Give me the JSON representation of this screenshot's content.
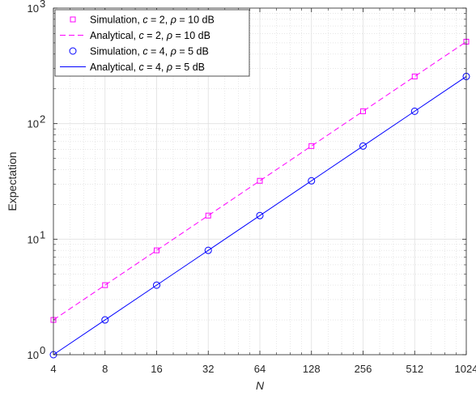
{
  "chart_data": {
    "type": "line",
    "xlabel": "N",
    "ylabel": "Expectation",
    "xscale": "log2",
    "yscale": "log10",
    "xlim": [
      4,
      1024
    ],
    "ylim": [
      1,
      1000
    ],
    "x_ticks": [
      4,
      8,
      16,
      32,
      64,
      128,
      256,
      512,
      1024
    ],
    "x_tick_labels": [
      "4",
      "8",
      "16",
      "32",
      "64",
      "128",
      "256",
      "512",
      "1024"
    ],
    "y_ticks": [
      1,
      10,
      100,
      1000
    ],
    "y_tick_labels": [
      {
        "base": "10",
        "exp": "0"
      },
      {
        "base": "10",
        "exp": "1"
      },
      {
        "base": "10",
        "exp": "2"
      },
      {
        "base": "10",
        "exp": "3"
      }
    ],
    "grid": true,
    "legend_position": "top-left",
    "series": [
      {
        "name": "Simulation, c = 2, ρ = 10 dB",
        "legend": {
          "prefix": "Simulation, ",
          "var1": "c",
          "mid": " = 2, ",
          "var2": "ρ",
          "suffix": " = 10 dB"
        },
        "style": "markers",
        "marker": "square",
        "color": "#ff00ff",
        "x": [
          4,
          8,
          16,
          32,
          64,
          128,
          256,
          512,
          1024
        ],
        "y": [
          2,
          4,
          8,
          16,
          32,
          64,
          128,
          256,
          512
        ]
      },
      {
        "name": "Analytical, c = 2, ρ = 10 dB",
        "legend": {
          "prefix": "Analytical, ",
          "var1": "c",
          "mid": " = 2, ",
          "var2": "ρ",
          "suffix": " = 10 dB"
        },
        "style": "dashed",
        "color": "#ff00ff",
        "x": [
          4,
          8,
          16,
          32,
          64,
          128,
          256,
          512,
          1024
        ],
        "y": [
          2,
          4,
          8,
          16,
          32,
          64,
          128,
          256,
          512
        ]
      },
      {
        "name": "Simulation, c = 4, ρ = 5 dB",
        "legend": {
          "prefix": "Simulation, ",
          "var1": "c",
          "mid": " = 4, ",
          "var2": "ρ",
          "suffix": " = 5 dB"
        },
        "style": "markers",
        "marker": "circle",
        "color": "#0000ff",
        "x": [
          4,
          8,
          16,
          32,
          64,
          128,
          256,
          512,
          1024
        ],
        "y": [
          1,
          2,
          4,
          8,
          16,
          32,
          64,
          128,
          256
        ]
      },
      {
        "name": "Analytical, c = 4, ρ = 5 dB",
        "legend": {
          "prefix": "Analytical, ",
          "var1": "c",
          "mid": " = 4, ",
          "var2": "ρ",
          "suffix": " = 5 dB"
        },
        "style": "solid",
        "color": "#0000ff",
        "x": [
          4,
          8,
          16,
          32,
          64,
          128,
          256,
          512,
          1024
        ],
        "y": [
          1,
          2,
          4,
          8,
          16,
          32,
          64,
          128,
          256
        ]
      }
    ]
  }
}
